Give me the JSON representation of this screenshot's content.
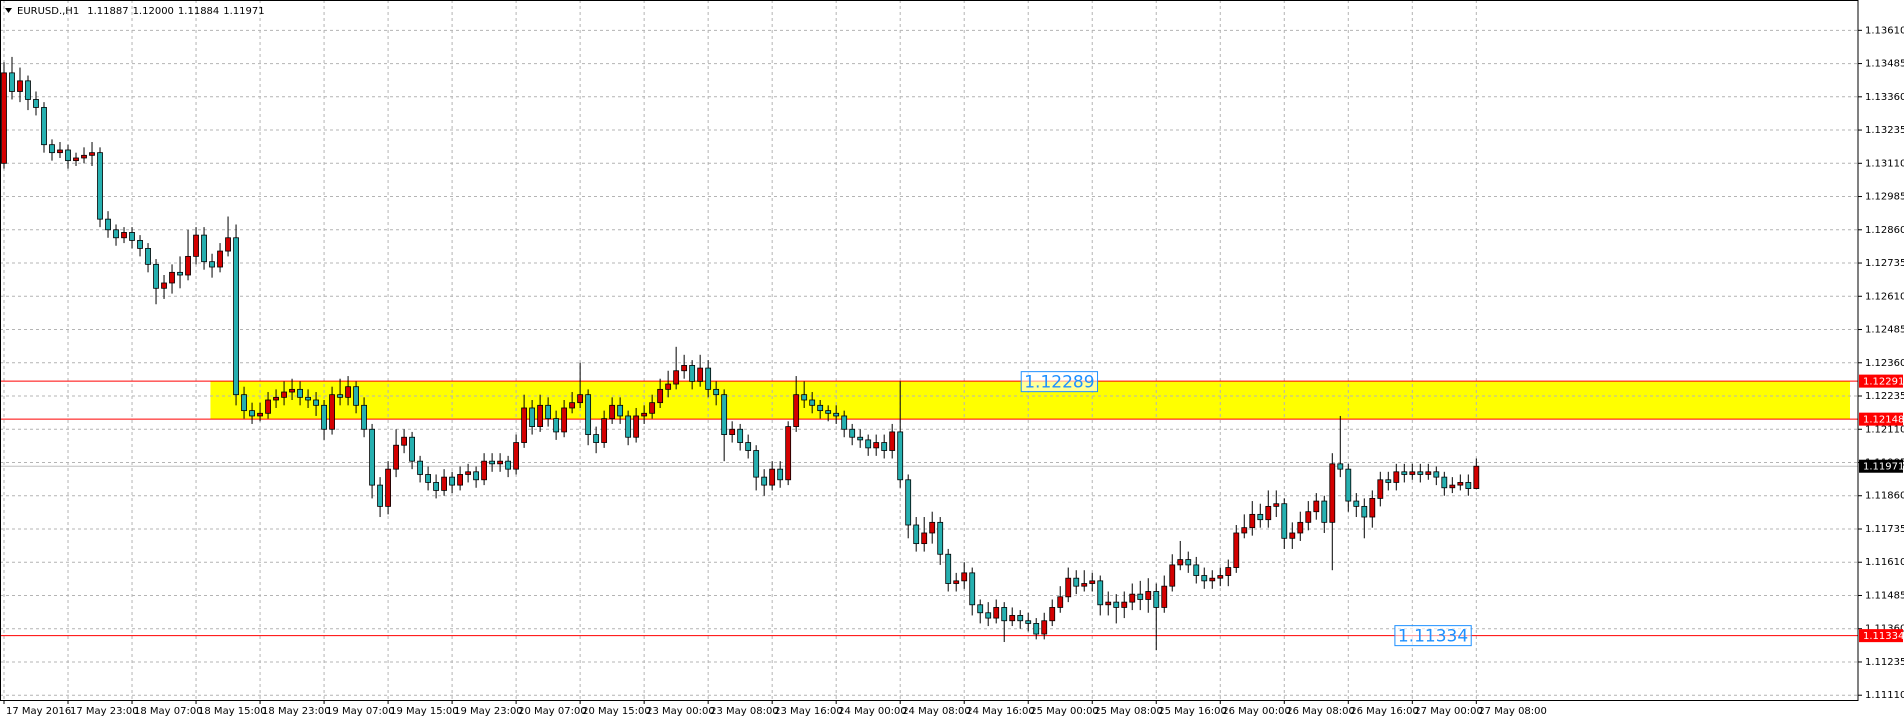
{
  "chart_data": {
    "type": "candlestick",
    "header": "EURUSD.,H1",
    "header_values": [
      {
        "value": 1.11887,
        "label": "1.11887"
      },
      {
        "value": 1.12,
        "label": "1.12000"
      },
      {
        "value": 1.11884,
        "label": "1.11884"
      },
      {
        "value": 1.11971,
        "label": "1.11971"
      }
    ],
    "bull_color": "#d40000",
    "bear_color": "#26b0b0",
    "outline_color": "#000000",
    "grid": true,
    "xlim": [
      -0.5,
      231.7
    ],
    "xticks": [
      {
        "value": 0,
        "label": "17 May 2016"
      },
      {
        "value": 8,
        "label": "17 May 23:00"
      },
      {
        "value": 16,
        "label": "18 May 07:00"
      },
      {
        "value": 24,
        "label": "18 May 15:00"
      },
      {
        "value": 32,
        "label": "18 May 23:00"
      },
      {
        "value": 40,
        "label": "19 May 07:00"
      },
      {
        "value": 48,
        "label": "19 May 15:00"
      },
      {
        "value": 56,
        "label": "19 May 23:00"
      },
      {
        "value": 64,
        "label": "20 May 07:00"
      },
      {
        "value": 72,
        "label": "20 May 15:00"
      },
      {
        "value": 80,
        "label": "23 May 00:00"
      },
      {
        "value": 88,
        "label": "23 May 08:00"
      },
      {
        "value": 96,
        "label": "23 May 16:00"
      },
      {
        "value": 104,
        "label": "24 May 00:00"
      },
      {
        "value": 112,
        "label": "24 May 08:00"
      },
      {
        "value": 120,
        "label": "24 May 16:00"
      },
      {
        "value": 128,
        "label": "25 May 00:00"
      },
      {
        "value": 136,
        "label": "25 May 08:00"
      },
      {
        "value": 144,
        "label": "25 May 16:00"
      },
      {
        "value": 152,
        "label": "26 May 00:00"
      },
      {
        "value": 160,
        "label": "26 May 08:00"
      },
      {
        "value": 168,
        "label": "26 May 16:00"
      },
      {
        "value": 176,
        "label": "27 May 00:00"
      },
      {
        "value": 184,
        "label": "27 May 08:00"
      }
    ],
    "ylim": [
      1.11092,
      1.13724
    ],
    "yticks": [
      {
        "value": 1.1361,
        "label": "1.13610"
      },
      {
        "value": 1.13485,
        "label": "1.13485"
      },
      {
        "value": 1.1336,
        "label": "1.13360"
      },
      {
        "value": 1.13235,
        "label": "1.13235"
      },
      {
        "value": 1.1311,
        "label": "1.13110"
      },
      {
        "value": 1.12985,
        "label": "1.12985"
      },
      {
        "value": 1.1286,
        "label": "1.12860"
      },
      {
        "value": 1.12735,
        "label": "1.12735"
      },
      {
        "value": 1.1261,
        "label": "1.12610"
      },
      {
        "value": 1.12485,
        "label": "1.12485"
      },
      {
        "value": 1.1236,
        "label": "1.12360"
      },
      {
        "value": 1.12235,
        "label": "1.12235"
      },
      {
        "value": 1.1211,
        "label": "1.12110"
      },
      {
        "value": 1.11985,
        "label": "1.11985"
      },
      {
        "value": 1.1186,
        "label": "1.11860"
      },
      {
        "value": 1.11735,
        "label": "1.11735"
      },
      {
        "value": 1.1161,
        "label": "1.11610"
      },
      {
        "value": 1.11485,
        "label": "1.11485"
      },
      {
        "value": 1.1136,
        "label": "1.11360"
      },
      {
        "value": 1.11235,
        "label": "1.11235"
      },
      {
        "value": 1.1111,
        "label": "1.11110"
      }
    ],
    "open": [
      1.1311,
      1.1345,
      1.1338,
      1.1342,
      1.1335,
      1.1332,
      1.1318,
      1.1315,
      1.1316,
      1.1312,
      1.1313,
      1.1314,
      1.1315,
      1.129,
      1.1286,
      1.1283,
      1.1285,
      1.1282,
      1.1279,
      1.1273,
      1.1264,
      1.1266,
      1.127,
      1.1269,
      1.1276,
      1.1284,
      1.1274,
      1.1272,
      1.1278,
      1.1283,
      1.1224,
      1.1218,
      1.1216,
      1.1217,
      1.1222,
      1.1223,
      1.1225,
      1.1226,
      1.1223,
      1.1222,
      1.122,
      1.1211,
      1.1224,
      1.1223,
      1.1227,
      1.122,
      1.1211,
      1.119,
      1.1182,
      1.1196,
      1.1205,
      1.1208,
      1.1199,
      1.1194,
      1.1191,
      1.1188,
      1.1193,
      1.119,
      1.1194,
      1.1195,
      1.1192,
      1.1199,
      1.1198,
      1.1199,
      1.1196,
      1.1206,
      1.1219,
      1.1212,
      1.122,
      1.1215,
      1.121,
      1.1219,
      1.1221,
      1.1224,
      1.1209,
      1.1206,
      1.1215,
      1.122,
      1.1216,
      1.1208,
      1.1216,
      1.1217,
      1.1221,
      1.1226,
      1.1228,
      1.1233,
      1.1235,
      1.1229,
      1.1234,
      1.1226,
      1.1224,
      1.1209,
      1.1211,
      1.1206,
      1.1203,
      1.1193,
      1.119,
      1.1196,
      1.1192,
      1.1212,
      1.1224,
      1.1222,
      1.122,
      1.1218,
      1.1217,
      1.1216,
      1.1211,
      1.1208,
      1.1207,
      1.1204,
      1.1206,
      1.1203,
      1.121,
      1.1192,
      1.1175,
      1.1168,
      1.1172,
      1.1176,
      1.1164,
      1.1153,
      1.1154,
      1.1157,
      1.1145,
      1.1142,
      1.114,
      1.1144,
      1.1139,
      1.1141,
      1.1139,
      1.1138,
      1.1134,
      1.1139,
      1.1144,
      1.1148,
      1.1155,
      1.1152,
      1.1153,
      1.1154,
      1.1145,
      1.1146,
      1.1144,
      1.1146,
      1.1149,
      1.1147,
      1.115,
      1.1144,
      1.1152,
      1.116,
      1.1162,
      1.116,
      1.1156,
      1.1154,
      1.1155,
      1.1156,
      1.1159,
      1.1172,
      1.1174,
      1.1179,
      1.1177,
      1.1182,
      1.1183,
      1.117,
      1.1172,
      1.1176,
      1.118,
      1.1184,
      1.1176,
      1.1198,
      1.1196,
      1.1184,
      1.1182,
      1.1178,
      1.1185,
      1.1192,
      1.1191,
      1.1195,
      1.1194,
      1.1195,
      1.1194,
      1.1195,
      1.1193,
      1.1189,
      1.119,
      1.1191,
      1.11887
    ],
    "high": [
      1.1349,
      1.1351,
      1.1347,
      1.1344,
      1.1338,
      1.1334,
      1.132,
      1.1319,
      1.1318,
      1.1315,
      1.1317,
      1.1319,
      1.1317,
      1.1293,
      1.1288,
      1.1287,
      1.1287,
      1.1284,
      1.1281,
      1.1275,
      1.1269,
      1.1273,
      1.1276,
      1.1286,
      1.1287,
      1.1287,
      1.1277,
      1.1281,
      1.1291,
      1.1288,
      1.1227,
      1.1221,
      1.1221,
      1.1225,
      1.1226,
      1.1229,
      1.123,
      1.1229,
      1.1226,
      1.1225,
      1.1222,
      1.1227,
      1.123,
      1.1231,
      1.1229,
      1.1223,
      1.1213,
      1.1193,
      1.1199,
      1.1211,
      1.1211,
      1.121,
      1.1201,
      1.1197,
      1.1194,
      1.1196,
      1.1195,
      1.1197,
      1.1198,
      1.1197,
      1.1202,
      1.1202,
      1.1202,
      1.1201,
      1.1209,
      1.1224,
      1.1222,
      1.1224,
      1.1223,
      1.1218,
      1.1222,
      1.1225,
      1.1236,
      1.1226,
      1.1212,
      1.1218,
      1.1223,
      1.1223,
      1.1218,
      1.1219,
      1.122,
      1.1224,
      1.123,
      1.1233,
      1.1242,
      1.1239,
      1.1237,
      1.1239,
      1.1237,
      1.1229,
      1.1226,
      1.1214,
      1.1213,
      1.1209,
      1.1205,
      1.1196,
      1.1199,
      1.1199,
      1.1214,
      1.1231,
      1.1229,
      1.1225,
      1.1222,
      1.122,
      1.122,
      1.1218,
      1.1213,
      1.1211,
      1.1209,
      1.1209,
      1.1209,
      1.1213,
      1.1229,
      1.1194,
      1.1178,
      1.1178,
      1.118,
      1.1178,
      1.1166,
      1.1157,
      1.1161,
      1.1159,
      1.1147,
      1.1146,
      1.1147,
      1.1146,
      1.1144,
      1.1143,
      1.1142,
      1.114,
      1.1142,
      1.1147,
      1.1152,
      1.1159,
      1.1158,
      1.1158,
      1.1157,
      1.1156,
      1.115,
      1.1149,
      1.115,
      1.1153,
      1.1154,
      1.1155,
      1.1153,
      1.1156,
      1.1164,
      1.1169,
      1.1165,
      1.1163,
      1.1159,
      1.1158,
      1.1159,
      1.1162,
      1.1175,
      1.1179,
      1.1184,
      1.1183,
      1.1188,
      1.1188,
      1.1185,
      1.1176,
      1.118,
      1.1184,
      1.1187,
      1.1186,
      1.1202,
      1.1216,
      1.1198,
      1.1187,
      1.1185,
      1.1188,
      1.1195,
      1.1195,
      1.1198,
      1.1198,
      1.1198,
      1.1198,
      1.1198,
      1.1197,
      1.1195,
      1.1193,
      1.1194,
      1.1194,
      1.12
    ],
    "low": [
      1.1309,
      1.1335,
      1.1334,
      1.1331,
      1.1329,
      1.1315,
      1.1312,
      1.1313,
      1.1309,
      1.131,
      1.1311,
      1.131,
      1.1287,
      1.1283,
      1.128,
      1.1281,
      1.1279,
      1.1276,
      1.127,
      1.1258,
      1.126,
      1.1262,
      1.1264,
      1.1267,
      1.1273,
      1.1271,
      1.1268,
      1.127,
      1.1276,
      1.122,
      1.1215,
      1.1213,
      1.1214,
      1.1215,
      1.1219,
      1.122,
      1.1222,
      1.122,
      1.1219,
      1.1216,
      1.1207,
      1.1209,
      1.122,
      1.122,
      1.1217,
      1.1208,
      1.1185,
      1.1178,
      1.1179,
      1.1193,
      1.1202,
      1.1196,
      1.1191,
      1.1188,
      1.1185,
      1.1186,
      1.1187,
      1.1188,
      1.1191,
      1.1189,
      1.119,
      1.1195,
      1.1195,
      1.1193,
      1.1194,
      1.1204,
      1.1209,
      1.121,
      1.1212,
      1.1207,
      1.1208,
      1.1217,
      1.1219,
      1.1205,
      1.1202,
      1.1204,
      1.1213,
      1.1213,
      1.1205,
      1.1206,
      1.1213,
      1.1215,
      1.1219,
      1.1223,
      1.1226,
      1.123,
      1.1226,
      1.1227,
      1.1223,
      1.122,
      1.1199,
      1.1206,
      1.1203,
      1.12,
      1.1188,
      1.1186,
      1.1188,
      1.1189,
      1.119,
      1.121,
      1.1219,
      1.1217,
      1.1215,
      1.1214,
      1.1213,
      1.1208,
      1.1205,
      1.1204,
      1.1201,
      1.1201,
      1.12,
      1.12,
      1.1189,
      1.117,
      1.1165,
      1.1165,
      1.1168,
      1.116,
      1.115,
      1.115,
      1.1151,
      1.1141,
      1.1138,
      1.1137,
      1.1138,
      1.1131,
      1.1137,
      1.1136,
      1.1135,
      1.1132,
      1.1132,
      1.1137,
      1.1142,
      1.1146,
      1.1149,
      1.115,
      1.115,
      1.1141,
      1.1141,
      1.1138,
      1.114,
      1.1143,
      1.1143,
      1.1142,
      1.1128,
      1.1142,
      1.115,
      1.1158,
      1.1157,
      1.1153,
      1.1151,
      1.1151,
      1.1152,
      1.1152,
      1.1157,
      1.117,
      1.1171,
      1.1174,
      1.1174,
      1.1178,
      1.1166,
      1.1166,
      1.1169,
      1.1173,
      1.1177,
      1.1172,
      1.1158,
      1.1193,
      1.118,
      1.1178,
      1.117,
      1.1174,
      1.1182,
      1.1188,
      1.1188,
      1.1191,
      1.1192,
      1.1191,
      1.1192,
      1.119,
      1.1186,
      1.1187,
      1.1188,
      1.1186,
      1.11884
    ],
    "close": [
      1.1345,
      1.1338,
      1.1342,
      1.1335,
      1.1332,
      1.1318,
      1.1315,
      1.1316,
      1.1312,
      1.1313,
      1.1314,
      1.1315,
      1.129,
      1.1286,
      1.1283,
      1.1285,
      1.1282,
      1.1279,
      1.1273,
      1.1264,
      1.1266,
      1.127,
      1.1269,
      1.1276,
      1.1284,
      1.1274,
      1.1272,
      1.1278,
      1.1283,
      1.1224,
      1.1218,
      1.1216,
      1.1217,
      1.1222,
      1.1223,
      1.1225,
      1.1226,
      1.1223,
      1.1222,
      1.122,
      1.1211,
      1.1224,
      1.1223,
      1.1227,
      1.122,
      1.1211,
      1.119,
      1.1182,
      1.1196,
      1.1205,
      1.1208,
      1.1199,
      1.1194,
      1.1191,
      1.1188,
      1.1193,
      1.119,
      1.1194,
      1.1195,
      1.1192,
      1.1199,
      1.1198,
      1.1199,
      1.1196,
      1.1206,
      1.1219,
      1.1212,
      1.122,
      1.1215,
      1.121,
      1.1219,
      1.1221,
      1.1224,
      1.1209,
      1.1206,
      1.1215,
      1.122,
      1.1216,
      1.1208,
      1.1216,
      1.1217,
      1.1221,
      1.1226,
      1.1228,
      1.1233,
      1.1235,
      1.1229,
      1.1234,
      1.1226,
      1.1224,
      1.1209,
      1.1211,
      1.1206,
      1.1203,
      1.1193,
      1.119,
      1.1196,
      1.1192,
      1.1212,
      1.1224,
      1.1222,
      1.122,
      1.1218,
      1.1217,
      1.1216,
      1.1211,
      1.1208,
      1.1207,
      1.1204,
      1.1206,
      1.1203,
      1.121,
      1.1192,
      1.1175,
      1.1168,
      1.1172,
      1.1176,
      1.1164,
      1.1153,
      1.1154,
      1.1157,
      1.1145,
      1.1142,
      1.114,
      1.1144,
      1.1139,
      1.1141,
      1.1139,
      1.1138,
      1.1134,
      1.1139,
      1.1144,
      1.1148,
      1.1155,
      1.1152,
      1.1153,
      1.1154,
      1.1145,
      1.1146,
      1.1144,
      1.1146,
      1.1149,
      1.1147,
      1.115,
      1.1144,
      1.1152,
      1.116,
      1.1162,
      1.116,
      1.1156,
      1.1154,
      1.1155,
      1.1156,
      1.1159,
      1.1172,
      1.1174,
      1.1179,
      1.1177,
      1.1182,
      1.1183,
      1.117,
      1.1172,
      1.1176,
      1.118,
      1.1184,
      1.1176,
      1.1198,
      1.1196,
      1.1184,
      1.1182,
      1.1178,
      1.1185,
      1.1192,
      1.1191,
      1.1195,
      1.1194,
      1.1195,
      1.1194,
      1.1195,
      1.1193,
      1.1189,
      1.119,
      1.1191,
      1.11887,
      1.11971
    ],
    "zone": {
      "from": 1.12148,
      "to": 1.12291,
      "x": [
        25.8,
        230.7
      ],
      "color": "#ffff00"
    },
    "levels": [
      {
        "value": 1.12291,
        "color": "#ff0000"
      },
      {
        "value": 1.12148,
        "color": "#ff0000"
      },
      {
        "value": 1.11334,
        "color": "#ff0000"
      }
    ],
    "current_price": {
      "value": 1.11971,
      "color": "#000000"
    },
    "annotations": [
      {
        "value": 1.12289,
        "x": 127.5,
        "color": "#1e90ff"
      },
      {
        "value": 1.11334,
        "x": 174.2,
        "color": "#1e90ff"
      }
    ]
  }
}
